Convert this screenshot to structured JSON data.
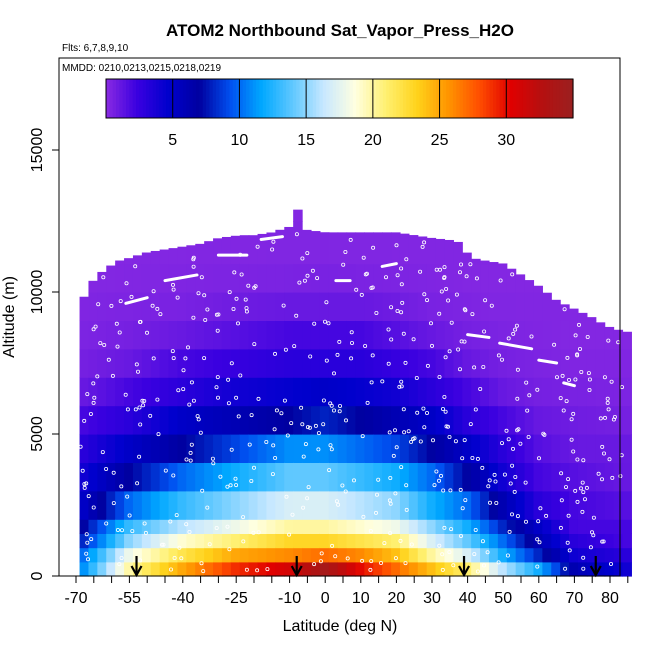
{
  "chart_data": {
    "type": "heatmap",
    "title": "ATOM2 Northbound Sat_Vapor_Press_H2O",
    "subtitle_flights": "Flts: 6,7,8,9,10",
    "subtitle_dates": "MMDD: 0210,0213,0215,0218,0219",
    "xlabel": "Latitude (deg N)",
    "ylabel": "Altitude (m)",
    "xlim": [
      -70,
      85
    ],
    "ylim": [
      0,
      17600
    ],
    "x_ticks": [
      -70,
      -55,
      -40,
      -25,
      -10,
      0,
      10,
      20,
      30,
      40,
      50,
      60,
      70,
      80
    ],
    "x_tick_labels": [
      "-70",
      "-55",
      "-40",
      "-25",
      "-10",
      "0",
      "10",
      "20",
      "30",
      "40",
      "50",
      "60",
      "70",
      "80"
    ],
    "y_ticks": [
      0,
      5000,
      10000,
      15000
    ],
    "y_tick_labels": [
      "0",
      "5000",
      "10000",
      "15000"
    ],
    "colorbar": {
      "range": [
        0,
        35
      ],
      "tick_values": [
        5,
        10,
        15,
        20,
        25,
        30
      ],
      "tick_labels": [
        "5",
        "10",
        "15",
        "20",
        "25",
        "30"
      ],
      "colors": [
        "#8a2be2",
        "#3a00e0",
        "#0000cd",
        "#0000a0",
        "#0050f0",
        "#00a8ff",
        "#60c8ff",
        "#c8e8ff",
        "#ffffe0",
        "#fff070",
        "#ffd21a",
        "#ff9400",
        "#ff4d00",
        "#e00000",
        "#b51010",
        "#9b2020"
      ]
    },
    "arrow_latitudes": [
      -53,
      -8,
      39,
      76
    ],
    "altitude_layers": [
      {
        "alt": [
          0,
          500
        ],
        "profile": [
          [
            -68,
            11
          ],
          [
            -55,
            20
          ],
          [
            -40,
            25
          ],
          [
            -25,
            29
          ],
          [
            -10,
            31
          ],
          [
            0,
            34
          ],
          [
            10,
            30
          ],
          [
            20,
            27
          ],
          [
            30,
            24
          ],
          [
            40,
            21
          ],
          [
            50,
            16
          ],
          [
            60,
            12
          ],
          [
            70,
            6
          ],
          [
            85,
            4
          ]
        ]
      },
      {
        "alt": [
          500,
          1000
        ],
        "profile": [
          [
            -68,
            10
          ],
          [
            -55,
            18
          ],
          [
            -40,
            22
          ],
          [
            -25,
            25
          ],
          [
            -10,
            26
          ],
          [
            0,
            27
          ],
          [
            10,
            26
          ],
          [
            20,
            24
          ],
          [
            30,
            20
          ],
          [
            40,
            17
          ],
          [
            50,
            12
          ],
          [
            60,
            8
          ],
          [
            70,
            4
          ],
          [
            85,
            3
          ]
        ]
      },
      {
        "alt": [
          1000,
          1500
        ],
        "profile": [
          [
            -68,
            8
          ],
          [
            -55,
            15
          ],
          [
            -40,
            19
          ],
          [
            -25,
            21
          ],
          [
            -10,
            23
          ],
          [
            0,
            23
          ],
          [
            10,
            22
          ],
          [
            20,
            21
          ],
          [
            30,
            17
          ],
          [
            40,
            14
          ],
          [
            50,
            10
          ],
          [
            60,
            6
          ],
          [
            70,
            3
          ],
          [
            85,
            2
          ]
        ]
      },
      {
        "alt": [
          1500,
          2000
        ],
        "profile": [
          [
            -68,
            7
          ],
          [
            -55,
            13
          ],
          [
            -40,
            16
          ],
          [
            -25,
            18
          ],
          [
            -10,
            20
          ],
          [
            0,
            20
          ],
          [
            10,
            19
          ],
          [
            20,
            18
          ],
          [
            30,
            15
          ],
          [
            40,
            12
          ],
          [
            50,
            8
          ],
          [
            60,
            5
          ],
          [
            70,
            2
          ],
          [
            85,
            2
          ]
        ]
      },
      {
        "alt": [
          2000,
          3000
        ],
        "profile": [
          [
            -68,
            5
          ],
          [
            -55,
            10
          ],
          [
            -40,
            13
          ],
          [
            -25,
            15
          ],
          [
            -10,
            17
          ],
          [
            0,
            17
          ],
          [
            10,
            16
          ],
          [
            20,
            15
          ],
          [
            30,
            12
          ],
          [
            40,
            10
          ],
          [
            50,
            6
          ],
          [
            60,
            3
          ],
          [
            70,
            2
          ],
          [
            85,
            1.5
          ]
        ]
      },
      {
        "alt": [
          3000,
          4000
        ],
        "profile": [
          [
            -68,
            4
          ],
          [
            -55,
            7
          ],
          [
            -40,
            10
          ],
          [
            -25,
            12
          ],
          [
            -10,
            14
          ],
          [
            0,
            14
          ],
          [
            10,
            13
          ],
          [
            20,
            12
          ],
          [
            30,
            10
          ],
          [
            40,
            7
          ],
          [
            50,
            4
          ],
          [
            60,
            2
          ],
          [
            70,
            1.5
          ],
          [
            85,
            1
          ]
        ]
      },
      {
        "alt": [
          4000,
          5000
        ],
        "profile": [
          [
            -68,
            3
          ],
          [
            -55,
            5
          ],
          [
            -40,
            7
          ],
          [
            -25,
            9
          ],
          [
            -10,
            11
          ],
          [
            0,
            11
          ],
          [
            10,
            10
          ],
          [
            20,
            9
          ],
          [
            30,
            7
          ],
          [
            40,
            5
          ],
          [
            50,
            3
          ],
          [
            60,
            1.5
          ],
          [
            70,
            1
          ],
          [
            85,
            1
          ]
        ]
      },
      {
        "alt": [
          5000,
          6000
        ],
        "profile": [
          [
            -68,
            2
          ],
          [
            -55,
            3
          ],
          [
            -40,
            5
          ],
          [
            -25,
            6
          ],
          [
            -10,
            7
          ],
          [
            0,
            8
          ],
          [
            10,
            7
          ],
          [
            20,
            6
          ],
          [
            30,
            5
          ],
          [
            40,
            3
          ],
          [
            50,
            2
          ],
          [
            60,
            1
          ],
          [
            70,
            0.8
          ],
          [
            85,
            0.6
          ]
        ]
      },
      {
        "alt": [
          6000,
          7000
        ],
        "profile": [
          [
            -68,
            1
          ],
          [
            -55,
            2
          ],
          [
            -40,
            3
          ],
          [
            -25,
            4
          ],
          [
            -10,
            4.5
          ],
          [
            0,
            5
          ],
          [
            10,
            4.5
          ],
          [
            20,
            4
          ],
          [
            30,
            3
          ],
          [
            40,
            2
          ],
          [
            50,
            1
          ],
          [
            60,
            0.6
          ],
          [
            70,
            0.5
          ],
          [
            85,
            0.4
          ]
        ]
      },
      {
        "alt": [
          7000,
          8000
        ],
        "profile": [
          [
            -68,
            0.6
          ],
          [
            -55,
            1
          ],
          [
            -40,
            2
          ],
          [
            -25,
            2.5
          ],
          [
            -10,
            3
          ],
          [
            0,
            3
          ],
          [
            10,
            3
          ],
          [
            20,
            2.5
          ],
          [
            30,
            2
          ],
          [
            40,
            1
          ],
          [
            50,
            0.6
          ],
          [
            60,
            0.4
          ],
          [
            70,
            0.3
          ],
          [
            85,
            0.3
          ]
        ]
      },
      {
        "alt": [
          8000,
          9000
        ],
        "profile": [
          [
            -68,
            0.4
          ],
          [
            -55,
            0.6
          ],
          [
            -40,
            1
          ],
          [
            -25,
            1.5
          ],
          [
            -10,
            2
          ],
          [
            0,
            2
          ],
          [
            10,
            2
          ],
          [
            20,
            1.5
          ],
          [
            30,
            1
          ],
          [
            40,
            0.6
          ],
          [
            50,
            0.4
          ],
          [
            60,
            0.3
          ],
          [
            70,
            0.2
          ],
          [
            85,
            0.2
          ]
        ]
      },
      {
        "alt": [
          9000,
          10000
        ],
        "profile": [
          [
            -68,
            0.3
          ],
          [
            -40,
            0.5
          ],
          [
            -25,
            0.8
          ],
          [
            -10,
            1
          ],
          [
            0,
            1
          ],
          [
            10,
            1
          ],
          [
            20,
            0.8
          ],
          [
            30,
            0.5
          ],
          [
            45,
            0.3
          ],
          [
            85,
            0.2
          ]
        ]
      },
      {
        "alt": [
          10000,
          11000
        ],
        "profile": [
          [
            -68,
            0.2
          ],
          [
            -25,
            0.4
          ],
          [
            0,
            0.5
          ],
          [
            20,
            0.4
          ],
          [
            45,
            0.2
          ],
          [
            85,
            0.2
          ]
        ]
      },
      {
        "alt": [
          11000,
          12500
        ],
        "profile": [
          [
            -68,
            0.2
          ],
          [
            0,
            0.3
          ],
          [
            85,
            0.2
          ]
        ]
      },
      {
        "alt": [
          12500,
          13000
        ],
        "profile": [
          [
            -68,
            0.2
          ],
          [
            85,
            0.2
          ]
        ]
      }
    ],
    "top_edge": [
      [
        -69,
        9500
      ],
      [
        -66,
        10300
      ],
      [
        -62,
        10800
      ],
      [
        -58,
        11100
      ],
      [
        -55,
        11200
      ],
      [
        -50,
        11400
      ],
      [
        -45,
        11500
      ],
      [
        -40,
        11600
      ],
      [
        -35,
        11700
      ],
      [
        -30,
        11900
      ],
      [
        -24,
        12000
      ],
      [
        -20,
        12000
      ],
      [
        -15,
        12100
      ],
      [
        -10,
        12300
      ],
      [
        -8,
        13000
      ],
      [
        -6,
        12200
      ],
      [
        0,
        12100
      ],
      [
        10,
        12100
      ],
      [
        20,
        12100
      ],
      [
        30,
        11900
      ],
      [
        37,
        11800
      ],
      [
        41,
        11200
      ],
      [
        45,
        11100
      ],
      [
        50,
        11000
      ],
      [
        55,
        10600
      ],
      [
        60,
        10200
      ],
      [
        65,
        9700
      ],
      [
        70,
        9400
      ],
      [
        75,
        9100
      ],
      [
        79,
        8800
      ],
      [
        84,
        8600
      ]
    ],
    "track_segments": [
      {
        "lat": [
          -56,
          -50
        ],
        "alt": [
          9600,
          9800
        ]
      },
      {
        "lat": [
          -45,
          -36
        ],
        "alt": [
          10400,
          10600
        ]
      },
      {
        "lat": [
          -30,
          -22
        ],
        "alt": [
          11300,
          11300
        ]
      },
      {
        "lat": [
          -18,
          -12
        ],
        "alt": [
          11850,
          11950
        ]
      },
      {
        "lat": [
          3,
          7
        ],
        "alt": [
          10400,
          10400
        ]
      },
      {
        "lat": [
          16,
          20
        ],
        "alt": [
          10900,
          11000
        ]
      },
      {
        "lat": [
          40,
          46
        ],
        "alt": [
          8500,
          8400
        ]
      },
      {
        "lat": [
          49,
          58
        ],
        "alt": [
          8200,
          8000
        ]
      },
      {
        "lat": [
          60,
          65
        ],
        "alt": [
          7600,
          7500
        ]
      },
      {
        "lat": [
          67,
          70
        ],
        "alt": [
          6800,
          6700
        ]
      }
    ]
  }
}
